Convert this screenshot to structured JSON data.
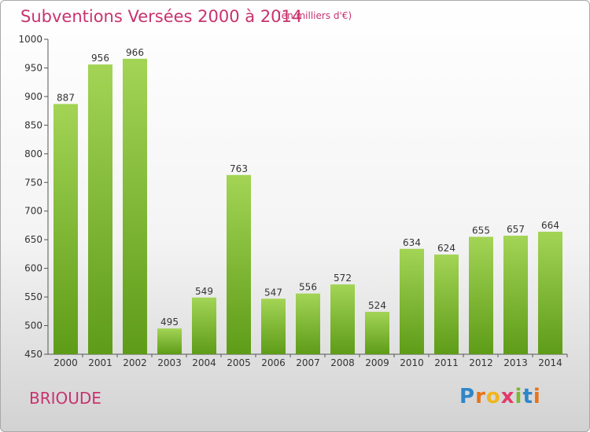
{
  "title": "Subventions Versées 2000 à 2014",
  "unit_note": "(en milliers d'€)",
  "commune": "BRIOUDE",
  "logo": {
    "letters": [
      "P",
      "r",
      "o",
      "x",
      "i",
      "t",
      "i"
    ],
    "colors": [
      "#2e86c8",
      "#e8731a",
      "#f2b51c",
      "#e23a6a",
      "#7ab833",
      "#2e86c8",
      "#e8731a"
    ]
  },
  "colors": {
    "title": "#c8336e",
    "bar_light": "#a3d455",
    "bar_dark": "#5e9c18"
  },
  "chart_data": {
    "type": "bar",
    "categories": [
      "2000",
      "2001",
      "2002",
      "2003",
      "2004",
      "2005",
      "2006",
      "2007",
      "2008",
      "2009",
      "2010",
      "2011",
      "2012",
      "2013",
      "2014"
    ],
    "values": [
      887,
      956,
      966,
      495,
      549,
      763,
      547,
      556,
      572,
      524,
      634,
      624,
      655,
      657,
      664
    ],
    "ylim": [
      450,
      1000
    ],
    "yticks": [
      450,
      500,
      550,
      600,
      650,
      700,
      750,
      800,
      850,
      900,
      950,
      1000
    ],
    "grid": false,
    "legend": "none"
  }
}
